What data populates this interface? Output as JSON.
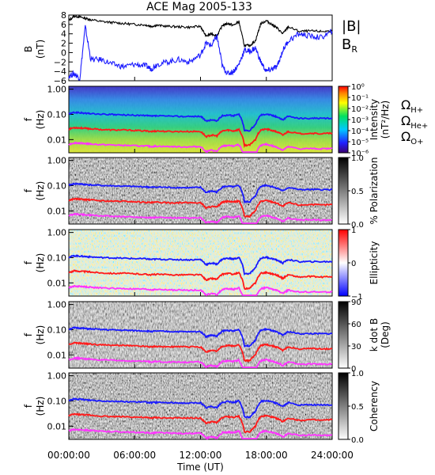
{
  "title": "ACE Mag 2005-133",
  "x_axis": {
    "label": "Time (UT)",
    "tick_labels": [
      "00:00:00",
      "06:00:00",
      "12:00:00",
      "18:00:00",
      "24:00:00"
    ]
  },
  "legends": {
    "magnitude": "|B|",
    "radial_main": "B",
    "radial_sub": "R",
    "h_main": "Ω",
    "h_sub": "H+",
    "he_main": "Ω",
    "he_sub": "He+",
    "o_main": "Ω",
    "o_sub": "O+"
  },
  "colors": {
    "magnitude": "#000000",
    "radial": "#1a1aff",
    "h_plus": "#1a1aff",
    "he_plus": "#ff1a1a",
    "o_plus": "#ff33ff"
  },
  "chart_data": [
    {
      "type": "line",
      "ylabel": "B\n(nT)",
      "ylim": [
        -6,
        8
      ],
      "y_tick_labels": [
        "8",
        "6",
        "4",
        "2",
        "0",
        "−2",
        "−4",
        "−6"
      ],
      "x_hours": [
        0,
        0.5,
        1,
        1.5,
        2,
        3,
        4,
        5,
        6,
        7,
        7.5,
        8,
        9,
        10,
        11,
        12,
        12.5,
        13,
        13.5,
        14,
        14.5,
        15,
        15.5,
        16,
        16.5,
        17,
        17.5,
        18,
        18.5,
        19,
        19.5,
        20,
        21,
        22,
        23,
        24
      ],
      "series": [
        {
          "name": "|B|",
          "values": [
            6.8,
            7.8,
            7.6,
            7.3,
            7.0,
            6.6,
            6.4,
            6.2,
            6.0,
            5.9,
            5.6,
            5.8,
            5.6,
            5.5,
            5.4,
            5.6,
            3.5,
            4.0,
            3.6,
            5.8,
            6.2,
            5.8,
            6.6,
            1.5,
            1.5,
            2.5,
            6.2,
            6.8,
            6.0,
            5.2,
            4.0,
            5.5,
            4.5,
            4.6,
            4.5,
            4.6
          ]
        },
        {
          "name": "B",
          "values": [
            -5.0,
            -4.5,
            -5.5,
            5.5,
            -1.5,
            -1.5,
            -2.5,
            -3.0,
            -2.5,
            -2.8,
            -3.5,
            -2.5,
            -2.0,
            -1.5,
            -2.0,
            -0.5,
            2.0,
            1.5,
            3.5,
            -3.0,
            -4.5,
            -4.0,
            -2.5,
            0.5,
            0.2,
            1.0,
            -2.0,
            -4.0,
            -3.5,
            -3.0,
            0.5,
            2.5,
            4.0,
            3.5,
            3.2,
            4.5
          ]
        }
      ]
    },
    {
      "type": "heatmap",
      "ylabel": "f\n(Hz)",
      "y_tick_labels": [
        "1.00",
        "0.10",
        "0.01"
      ],
      "colorbar_label": "Intensity\n(nT²/Hz)",
      "colorbar_tick_labels": [
        "10⁰",
        "10⁻¹",
        "10⁻²",
        "10⁻³",
        "10⁻⁴",
        "10⁻⁵",
        "10⁻⁶"
      ]
    },
    {
      "type": "heatmap",
      "ylabel": "f\n(Hz)",
      "y_tick_labels": [
        "1.00",
        "0.10",
        "0.01"
      ],
      "colorbar_label": "% Polarization",
      "colorbar_tick_labels": [
        "1.0",
        "0.5",
        "0.0"
      ]
    },
    {
      "type": "heatmap",
      "ylabel": "f\n(Hz)",
      "y_tick_labels": [
        "1.00",
        "0.10",
        "0.01"
      ],
      "colorbar_label": "Ellipticity",
      "colorbar_tick_labels": [
        "1",
        "0",
        "−1"
      ]
    },
    {
      "type": "heatmap",
      "ylabel": "f\n(Hz)",
      "y_tick_labels": [
        "1.00",
        "0.10",
        "0.01"
      ],
      "colorbar_label": "k dot B\n(Deg)",
      "colorbar_tick_labels": [
        "90",
        "60",
        "30",
        "0"
      ]
    },
    {
      "type": "heatmap",
      "ylabel": "f\n(Hz)",
      "y_tick_labels": [
        "1.00",
        "0.10",
        "0.01"
      ],
      "colorbar_label": "Coherency",
      "colorbar_tick_labels": [
        "1.0",
        "0.5",
        "0.0"
      ]
    }
  ],
  "gyrofrequency_lines": {
    "x_hours": [
      0,
      0.5,
      1,
      1.5,
      2,
      3,
      4,
      5,
      6,
      7,
      7.5,
      8,
      9,
      10,
      11,
      12,
      12.5,
      13,
      13.5,
      14,
      14.5,
      15,
      15.5,
      16,
      16.5,
      17,
      17.5,
      18,
      18.5,
      19,
      19.5,
      20,
      21,
      22,
      23,
      24
    ],
    "series": [
      {
        "name": "H+",
        "values_hz": [
          0.104,
          0.119,
          0.116,
          0.111,
          0.107,
          0.101,
          0.098,
          0.095,
          0.092,
          0.09,
          0.085,
          0.088,
          0.085,
          0.084,
          0.082,
          0.085,
          0.053,
          0.061,
          0.055,
          0.088,
          0.095,
          0.088,
          0.101,
          0.023,
          0.023,
          0.038,
          0.095,
          0.104,
          0.092,
          0.079,
          0.061,
          0.084,
          0.069,
          0.07,
          0.069,
          0.07
        ]
      },
      {
        "name": "He+",
        "values_hz": [
          0.026,
          0.03,
          0.029,
          0.028,
          0.027,
          0.025,
          0.024,
          0.024,
          0.023,
          0.022,
          0.021,
          0.022,
          0.021,
          0.021,
          0.021,
          0.021,
          0.013,
          0.015,
          0.014,
          0.022,
          0.024,
          0.022,
          0.025,
          0.006,
          0.006,
          0.01,
          0.024,
          0.026,
          0.023,
          0.02,
          0.015,
          0.021,
          0.017,
          0.018,
          0.017,
          0.018
        ]
      },
      {
        "name": "O+",
        "values_hz": [
          0.0065,
          0.0074,
          0.0073,
          0.007,
          0.0067,
          0.0063,
          0.0061,
          0.0059,
          0.0057,
          0.0056,
          0.0053,
          0.0055,
          0.0053,
          0.0052,
          0.0051,
          0.0053,
          0.0033,
          0.0038,
          0.0034,
          0.0055,
          0.0059,
          0.0055,
          0.0063,
          0.0014,
          0.0014,
          0.0024,
          0.0059,
          0.0065,
          0.0057,
          0.0049,
          0.0038,
          0.0052,
          0.0043,
          0.0044,
          0.0043,
          0.0044
        ]
      }
    ]
  }
}
